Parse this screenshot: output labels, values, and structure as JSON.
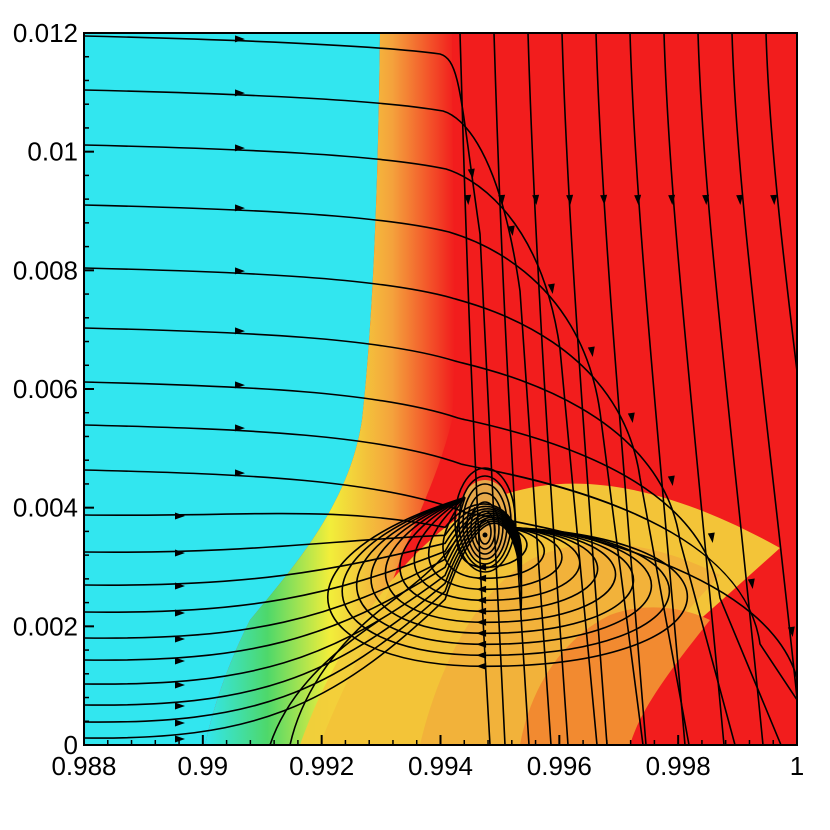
{
  "chart_data": {
    "type": "contour",
    "title": "",
    "xlabel": "",
    "ylabel": "",
    "xlim": [
      0.988,
      1.0
    ],
    "ylim": [
      0,
      0.012
    ],
    "x_ticks": [
      0.988,
      0.99,
      0.992,
      0.994,
      0.996,
      0.998,
      1.0
    ],
    "x_tick_labels": [
      "0.988",
      "0.99",
      "0.992",
      "0.994",
      "0.996",
      "0.998",
      "1"
    ],
    "y_ticks": [
      0,
      0.002,
      0.004,
      0.006,
      0.008,
      0.01,
      0.012
    ],
    "y_tick_labels": [
      "0",
      "0.002",
      "0.004",
      "0.006",
      "0.008",
      "0.01",
      "0.012"
    ],
    "grid": false,
    "legend": "none",
    "colors": {
      "cold": "#32e6ef",
      "transition_green": "#4ed86a",
      "transition_yellow": "#f2ee3a",
      "transition_orange": "#f4a23c",
      "hot": "#f21d1d",
      "streamlines": "#000000"
    },
    "vortex": {
      "x": 0.99475,
      "y": 0.0035
    }
  }
}
